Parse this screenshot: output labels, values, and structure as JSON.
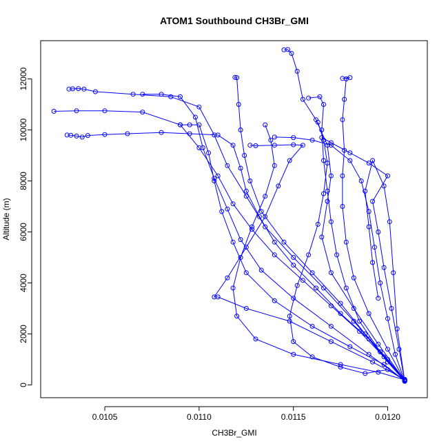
{
  "chart_data": {
    "type": "line",
    "title": "ATOM1 Southbound CH3Br_GMI",
    "xlabel": "CH3Br_GMI",
    "ylabel": "Altitude (m)",
    "xlim": [
      0.01016,
      0.01221
    ],
    "ylim": [
      -500,
      13500
    ],
    "x_ticks": [
      0.0105,
      0.011,
      0.0115,
      0.012
    ],
    "x_tick_labels": [
      "0.0105",
      "0.0110",
      "0.0115",
      "0.0120"
    ],
    "y_ticks": [
      0,
      2000,
      4000,
      6000,
      8000,
      10000,
      12000
    ],
    "y_tick_labels": [
      "0",
      "2000",
      "4000",
      "6000",
      "8000",
      "10000",
      "12000"
    ],
    "marker": "open-circle",
    "line_style": "line+points",
    "series_color": "#0000ff",
    "series": [
      {
        "points": [
          [
            0.01209,
            150
          ],
          [
            0.012,
            900
          ],
          [
            0.0119,
            1800
          ],
          [
            0.01175,
            2800
          ],
          [
            0.01162,
            3800
          ],
          [
            0.0115,
            4700
          ],
          [
            0.0114,
            5600
          ],
          [
            0.01132,
            6600
          ],
          [
            0.01125,
            7600
          ],
          [
            0.01122,
            8500
          ],
          [
            0.01118,
            9400
          ],
          [
            0.0111,
            9800
          ],
          [
            0.01095,
            9850
          ],
          [
            0.0108,
            9900
          ],
          [
            0.01062,
            9850
          ],
          [
            0.0105,
            9820
          ],
          [
            0.01041,
            9780
          ],
          [
            0.01038,
            9720
          ],
          [
            0.01035,
            9760
          ],
          [
            0.01032,
            9790
          ],
          [
            0.0103,
            9800
          ]
        ]
      },
      {
        "points": [
          [
            0.01209,
            200
          ],
          [
            0.01198,
            1100
          ],
          [
            0.01185,
            2100
          ],
          [
            0.0117,
            3100
          ],
          [
            0.01155,
            4100
          ],
          [
            0.0114,
            5100
          ],
          [
            0.01128,
            6100
          ],
          [
            0.01118,
            7100
          ],
          [
            0.0111,
            8200
          ],
          [
            0.011,
            9300
          ],
          [
            0.0109,
            10200
          ],
          [
            0.0107,
            10700
          ],
          [
            0.0105,
            10750
          ],
          [
            0.01035,
            10750
          ],
          [
            0.01023,
            10730
          ]
        ]
      },
      {
        "points": [
          [
            0.01209,
            180
          ],
          [
            0.01196,
            1300
          ],
          [
            0.01182,
            2500
          ],
          [
            0.01166,
            3800
          ],
          [
            0.0115,
            5000
          ],
          [
            0.01135,
            6200
          ],
          [
            0.01125,
            7400
          ],
          [
            0.01115,
            8600
          ],
          [
            0.01108,
            9800
          ],
          [
            0.011,
            10900
          ],
          [
            0.01085,
            11300
          ],
          [
            0.01065,
            11400
          ],
          [
            0.01045,
            11500
          ],
          [
            0.01039,
            11600
          ],
          [
            0.01036,
            11620
          ],
          [
            0.01033,
            11610
          ],
          [
            0.01031,
            11600
          ]
        ]
      },
      {
        "points": [
          [
            0.01209,
            160
          ],
          [
            0.012,
            1400
          ],
          [
            0.0119,
            2800
          ],
          [
            0.01182,
            4200
          ],
          [
            0.01178,
            5600
          ],
          [
            0.01176,
            7000
          ],
          [
            0.01176,
            8200
          ],
          [
            0.01177,
            9200
          ],
          [
            0.01176,
            10400
          ],
          [
            0.01177,
            11200
          ],
          [
            0.01178,
            12000
          ],
          [
            0.0118,
            12050
          ],
          [
            0.01176,
            12020
          ]
        ]
      },
      {
        "points": [
          [
            0.01209,
            170
          ],
          [
            0.01195,
            1600
          ],
          [
            0.01182,
            3000
          ],
          [
            0.0117,
            4400
          ],
          [
            0.01165,
            5800
          ],
          [
            0.01168,
            7200
          ],
          [
            0.0117,
            8200
          ],
          [
            0.01168,
            9400
          ],
          [
            0.01162,
            10400
          ],
          [
            0.01155,
            11200
          ],
          [
            0.01152,
            12300
          ],
          [
            0.01149,
            13000
          ],
          [
            0.01147,
            13150
          ],
          [
            0.01145,
            13140
          ]
        ]
      },
      {
        "points": [
          [
            0.01209,
            190
          ],
          [
            0.012,
            1000
          ],
          [
            0.01188,
            2000
          ],
          [
            0.01175,
            3200
          ],
          [
            0.0116,
            4400
          ],
          [
            0.01145,
            5600
          ],
          [
            0.01133,
            6800
          ],
          [
            0.01127,
            8000
          ],
          [
            0.01124,
            9000
          ],
          [
            0.01122,
            10000
          ],
          [
            0.01121,
            11000
          ],
          [
            0.0112,
            12050
          ],
          [
            0.01119,
            12060
          ]
        ]
      },
      {
        "points": [
          [
            0.01209,
            220
          ],
          [
            0.01192,
            900
          ],
          [
            0.0117,
            1700
          ],
          [
            0.01148,
            2500
          ],
          [
            0.01125,
            3000
          ],
          [
            0.0111,
            3450
          ],
          [
            0.01108,
            3450
          ],
          [
            0.01115,
            4200
          ],
          [
            0.01125,
            5400
          ],
          [
            0.01135,
            6600
          ],
          [
            0.01142,
            7800
          ],
          [
            0.01148,
            8800
          ],
          [
            0.01155,
            9400
          ],
          [
            0.0115,
            9420
          ],
          [
            0.0114,
            9400
          ],
          [
            0.0113,
            9380
          ],
          [
            0.01127,
            9400
          ]
        ]
      },
      {
        "points": [
          [
            0.01209,
            140
          ],
          [
            0.01204,
            1200
          ],
          [
            0.012,
            2600
          ],
          [
            0.01196,
            4000
          ],
          [
            0.01193,
            5400
          ],
          [
            0.0119,
            6800
          ],
          [
            0.01186,
            8000
          ],
          [
            0.0118,
            8800
          ],
          [
            0.0117,
            9400
          ],
          [
            0.0116,
            9600
          ],
          [
            0.0115,
            9700
          ],
          [
            0.0114,
            9720
          ]
        ]
      },
      {
        "points": [
          [
            0.01209,
            150
          ],
          [
            0.01206,
            1400
          ],
          [
            0.01202,
            3000
          ],
          [
            0.01198,
            4600
          ],
          [
            0.01195,
            6000
          ],
          [
            0.01192,
            7200
          ],
          [
            0.012,
            8200
          ],
          [
            0.0119,
            8700
          ],
          [
            0.0118,
            9100
          ],
          [
            0.0117,
            9500
          ],
          [
            0.01165,
            9700
          ]
        ]
      },
      {
        "points": [
          [
            0.01209,
            160
          ],
          [
            0.01198,
            800
          ],
          [
            0.0118,
            1500
          ],
          [
            0.0116,
            2300
          ],
          [
            0.0114,
            3300
          ],
          [
            0.01125,
            4400
          ],
          [
            0.01118,
            5600
          ],
          [
            0.01112,
            6800
          ],
          [
            0.01108,
            8000
          ],
          [
            0.01105,
            9100
          ],
          [
            0.011,
            10200
          ],
          [
            0.01095,
            10200
          ],
          [
            0.0109,
            10200
          ]
        ]
      },
      {
        "points": [
          [
            0.01209,
            200
          ],
          [
            0.01195,
            500
          ],
          [
            0.01175,
            800
          ],
          [
            0.0115,
            1200
          ],
          [
            0.0113,
            1800
          ],
          [
            0.0112,
            2700
          ],
          [
            0.01118,
            3800
          ],
          [
            0.01122,
            5000
          ],
          [
            0.01128,
            6200
          ],
          [
            0.01135,
            7400
          ],
          [
            0.0114,
            8600
          ],
          [
            0.01138,
            9600
          ],
          [
            0.01135,
            10200
          ]
        ]
      },
      {
        "points": [
          [
            0.01209,
            180
          ],
          [
            0.012,
            600
          ],
          [
            0.01188,
            450
          ],
          [
            0.01175,
            700
          ],
          [
            0.0116,
            1100
          ],
          [
            0.0115,
            1700
          ],
          [
            0.01148,
            2700
          ],
          [
            0.01152,
            3900
          ],
          [
            0.01158,
            5100
          ],
          [
            0.01163,
            6300
          ],
          [
            0.01166,
            7500
          ],
          [
            0.01168,
            8700
          ],
          [
            0.01166,
            9600
          ],
          [
            0.01163,
            10300
          ]
        ]
      },
      {
        "points": [
          [
            0.01209,
            150
          ],
          [
            0.01205,
            2200
          ],
          [
            0.01203,
            4400
          ],
          [
            0.01201,
            6400
          ],
          [
            0.01198,
            7800
          ],
          [
            0.01192,
            8800
          ],
          [
            0.01188,
            7600
          ],
          [
            0.0119,
            6200
          ],
          [
            0.01192,
            4800
          ],
          [
            0.01195,
            3400
          ]
        ]
      },
      {
        "points": [
          [
            0.01209,
            170
          ],
          [
            0.0119,
            1200
          ],
          [
            0.0117,
            2300
          ],
          [
            0.0115,
            3400
          ],
          [
            0.01133,
            4500
          ],
          [
            0.01122,
            5700
          ],
          [
            0.01115,
            6900
          ],
          [
            0.01108,
            8100
          ],
          [
            0.01102,
            9300
          ],
          [
            0.01098,
            10500
          ],
          [
            0.0109,
            11300
          ],
          [
            0.0108,
            11400
          ],
          [
            0.0107,
            11400
          ]
        ]
      },
      {
        "points": [
          [
            0.01209,
            200
          ],
          [
            0.01196,
            1300
          ],
          [
            0.01185,
            2500
          ],
          [
            0.01178,
            3800
          ],
          [
            0.01173,
            5100
          ],
          [
            0.0117,
            6400
          ],
          [
            0.01168,
            7600
          ],
          [
            0.01166,
            8800
          ],
          [
            0.01165,
            10000
          ],
          [
            0.01166,
            11000
          ],
          [
            0.01164,
            11300
          ],
          [
            0.01158,
            11250
          ]
        ]
      }
    ]
  }
}
